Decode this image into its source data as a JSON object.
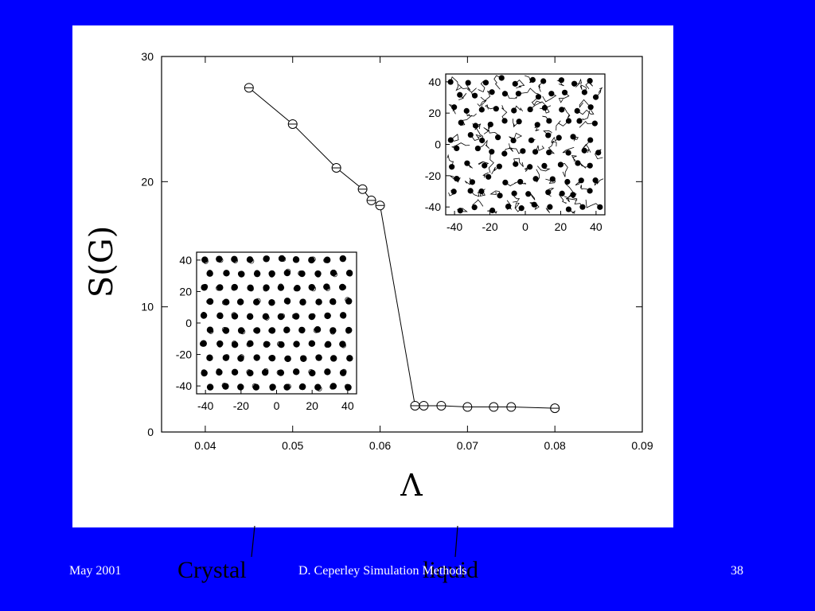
{
  "slide": {
    "footer_left": "May 2001",
    "footer_center": "D. Ceperley   Simulation Methods",
    "page_number": "38",
    "callout_crystal": "Crystal",
    "callout_liquid": "liquid",
    "colors": {
      "background": "#0000FF",
      "panel": "#FFFFFF",
      "ink": "#000000",
      "footer_text": "#FFFFFF"
    }
  },
  "chart_data": [
    {
      "type": "line",
      "xlabel": "Λ",
      "ylabel": "S(G)",
      "xlim": [
        0.035,
        0.09
      ],
      "ylim": [
        0,
        30
      ],
      "x_ticks": [
        "0.04",
        "0.05",
        "0.06",
        "0.07",
        "0.08",
        "0.09"
      ],
      "y_ticks": [
        "0",
        "10",
        "20",
        "30"
      ],
      "series": [
        {
          "marker": "circle-with-bar",
          "x": [
            0.045,
            0.05,
            0.055,
            0.058,
            0.059,
            0.06,
            0.064,
            0.065,
            0.067,
            0.07,
            0.073,
            0.075,
            0.08
          ],
          "y": [
            27.5,
            24.6,
            21.1,
            19.4,
            18.5,
            18.1,
            2.1,
            2.1,
            2.1,
            2.0,
            2.0,
            2.0,
            1.9
          ]
        }
      ]
    },
    {
      "type": "scatter",
      "inset": "crystal",
      "xlim": [
        -45,
        45
      ],
      "ylim": [
        -45,
        45
      ],
      "x_ticks": [
        "-40",
        "-20",
        "0",
        "20",
        "40"
      ],
      "y_ticks": [
        "40",
        "20",
        "0",
        "-20",
        "-40"
      ]
    },
    {
      "type": "scatter",
      "inset": "liquid",
      "xlim": [
        -45,
        45
      ],
      "ylim": [
        -45,
        45
      ],
      "x_ticks": [
        "-40",
        "-20",
        "0",
        "20",
        "40"
      ],
      "y_ticks": [
        "40",
        "20",
        "0",
        "-20",
        "-40"
      ]
    }
  ]
}
